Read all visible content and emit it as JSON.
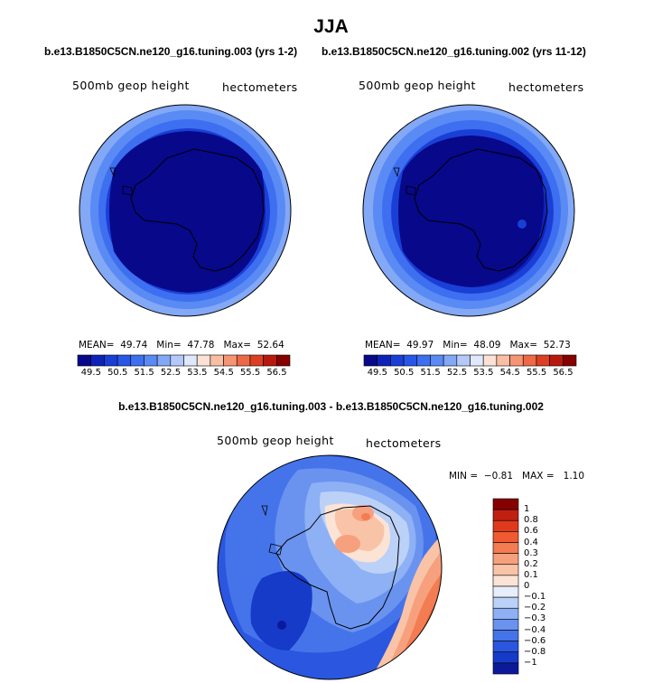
{
  "title": "JJA",
  "panel_left": {
    "case": "b.e13.B1850C5CN.ne120_g16.tuning.003 (yrs 1-2)",
    "variable": "500mb geop height",
    "units": "hectometers",
    "mean_label": "MEAN=",
    "mean": "49.74",
    "min_label": "Min=",
    "min": "47.78",
    "max_label": "Max=",
    "max": "52.64"
  },
  "panel_right": {
    "case": "b.e13.B1850C5CN.ne120_g16.tuning.002 (yrs 11-12)",
    "variable": "500mb geop height",
    "units": "hectometers",
    "mean_label": "MEAN=",
    "mean": "49.97",
    "min_label": "Min=",
    "min": "48.09",
    "max_label": "Max=",
    "max": "52.73"
  },
  "panel_diff": {
    "case": "b.e13.B1850C5CN.ne120_g16.tuning.003 - b.e13.B1850C5CN.ne120_g16.tuning.002",
    "variable": "500mb geop height",
    "units": "hectometers",
    "min_label": "MIN =",
    "min": "−0.81",
    "max_label": "MAX =",
    "max": "1.10"
  },
  "chart_data": [
    {
      "type": "heatmap",
      "projection": "south polar stereographic",
      "title": "b.e13.B1850C5CN.ne120_g16.tuning.003 (yrs 1-2)",
      "variable": "500mb geop height",
      "units": "hectometers",
      "stats": {
        "mean": 49.74,
        "min": 47.78,
        "max": 52.64
      },
      "contour_levels": [
        49.5,
        50.0,
        50.5,
        51.0,
        51.5,
        52.0,
        52.5,
        53.0,
        53.5,
        54.0,
        54.5,
        55.0,
        55.5,
        56.0,
        56.5
      ],
      "colorbar_labels": [
        "49.5",
        "50.5",
        "51.5",
        "52.5",
        "53.5",
        "54.5",
        "55.5",
        "56.5"
      ],
      "colorbar_colors": [
        "#08088a",
        "#0f22b8",
        "#1a3fd6",
        "#2857e8",
        "#3d6ff0",
        "#5a8af4",
        "#82a8f6",
        "#b4c8fa",
        "#dfe8fc",
        "#fbe1d6",
        "#f9bea3",
        "#f59574",
        "#ee6a47",
        "#dd3f22",
        "#b8190f",
        "#870000"
      ]
    },
    {
      "type": "heatmap",
      "projection": "south polar stereographic",
      "title": "b.e13.B1850C5CN.ne120_g16.tuning.002 (yrs 11-12)",
      "variable": "500mb geop height",
      "units": "hectometers",
      "stats": {
        "mean": 49.97,
        "min": 48.09,
        "max": 52.73
      },
      "contour_levels": [
        49.5,
        50.0,
        50.5,
        51.0,
        51.5,
        52.0,
        52.5,
        53.0,
        53.5,
        54.0,
        54.5,
        55.0,
        55.5,
        56.0,
        56.5
      ],
      "colorbar_labels": [
        "49.5",
        "50.5",
        "51.5",
        "52.5",
        "53.5",
        "54.5",
        "55.5",
        "56.5"
      ],
      "colorbar_colors": [
        "#08088a",
        "#0f22b8",
        "#1a3fd6",
        "#2857e8",
        "#3d6ff0",
        "#5a8af4",
        "#82a8f6",
        "#b4c8fa",
        "#dfe8fc",
        "#fbe1d6",
        "#f9bea3",
        "#f59574",
        "#ee6a47",
        "#dd3f22",
        "#b8190f",
        "#870000"
      ]
    },
    {
      "type": "heatmap",
      "projection": "south polar stereographic",
      "title": "b.e13.B1850C5CN.ne120_g16.tuning.003 - b.e13.B1850C5CN.ne120_g16.tuning.002",
      "variable": "500mb geop height",
      "units": "hectometers",
      "stats": {
        "min": -0.81,
        "max": 1.1
      },
      "colorbar_orientation": "vertical",
      "colorbar_labels": [
        "1",
        "0.8",
        "0.6",
        "0.4",
        "0.3",
        "0.2",
        "0.1",
        "0",
        "−0.1",
        "−0.2",
        "−0.3",
        "−0.4",
        "−0.6",
        "−0.8",
        "−1"
      ],
      "colorbar_colors": [
        "#870000",
        "#c02010",
        "#e03a1c",
        "#f05a30",
        "#f47c52",
        "#f7a07d",
        "#f9c3a8",
        "#fbe3d6",
        "#e6eefc",
        "#bcd1f8",
        "#8eb0f4",
        "#6a93f0",
        "#4574ea",
        "#2a56e0",
        "#163bc8",
        "#0a1a9a"
      ]
    }
  ]
}
